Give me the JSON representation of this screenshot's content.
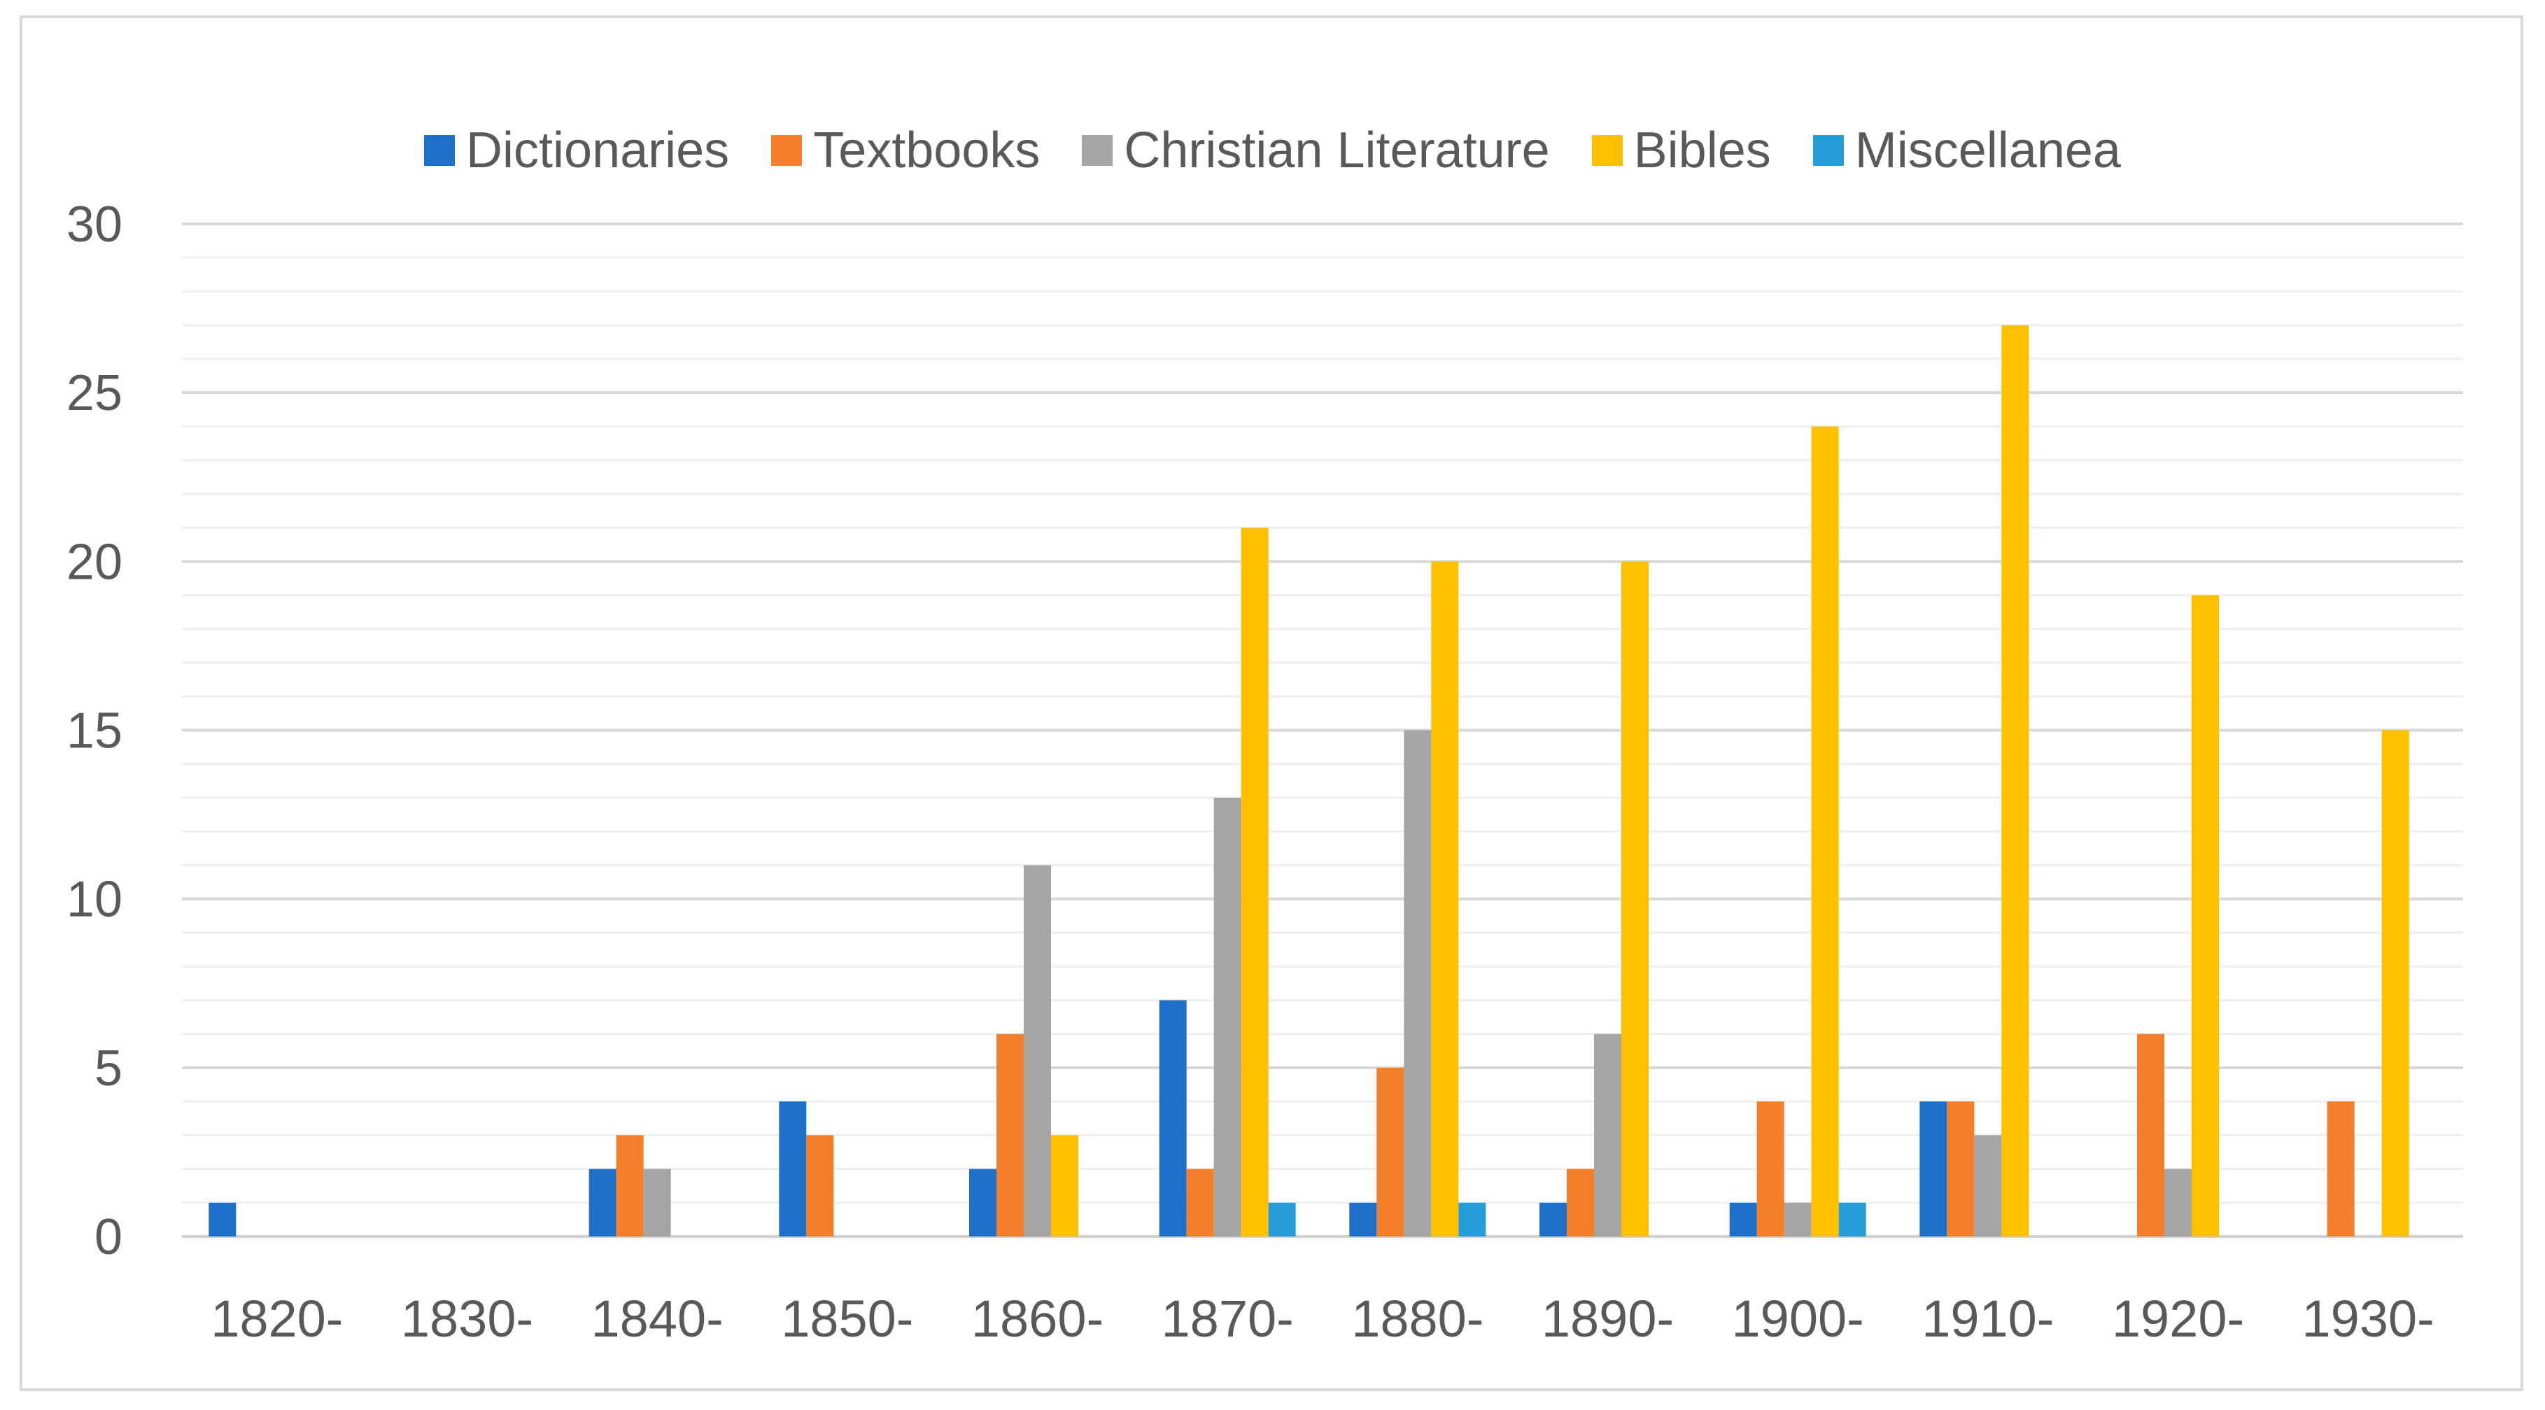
{
  "chart_data": {
    "type": "bar",
    "title": "",
    "xlabel": "",
    "ylabel": "",
    "categories": [
      "1820-",
      "1830-",
      "1840-",
      "1850-",
      "1860-",
      "1870-",
      "1880-",
      "1890-",
      "1900-",
      "1910-",
      "1920-",
      "1930-"
    ],
    "ylim": [
      0,
      30
    ],
    "yticks": [
      0,
      5,
      10,
      15,
      20,
      25,
      30
    ],
    "grid": true,
    "legend_position": "top-center",
    "series": [
      {
        "name": "Dictionaries",
        "color": "#1F70C8",
        "values": [
          1,
          0,
          2,
          4,
          2,
          7,
          1,
          1,
          1,
          4,
          0,
          0
        ]
      },
      {
        "name": "Textbooks",
        "color": "#F47F2A",
        "values": [
          0,
          0,
          3,
          3,
          6,
          2,
          5,
          2,
          4,
          4,
          6,
          4
        ]
      },
      {
        "name": "Christian Literature",
        "color": "#A5A5A5",
        "values": [
          0,
          0,
          2,
          0,
          11,
          13,
          15,
          6,
          1,
          3,
          2,
          0
        ]
      },
      {
        "name": "Bibles",
        "color": "#FFC000",
        "values": [
          0,
          0,
          0,
          0,
          3,
          21,
          20,
          20,
          24,
          27,
          19,
          15
        ]
      },
      {
        "name": "Miscellanea",
        "color": "#269DD8",
        "values": [
          0,
          0,
          0,
          0,
          0,
          1,
          1,
          0,
          1,
          0,
          0,
          0
        ]
      }
    ]
  }
}
